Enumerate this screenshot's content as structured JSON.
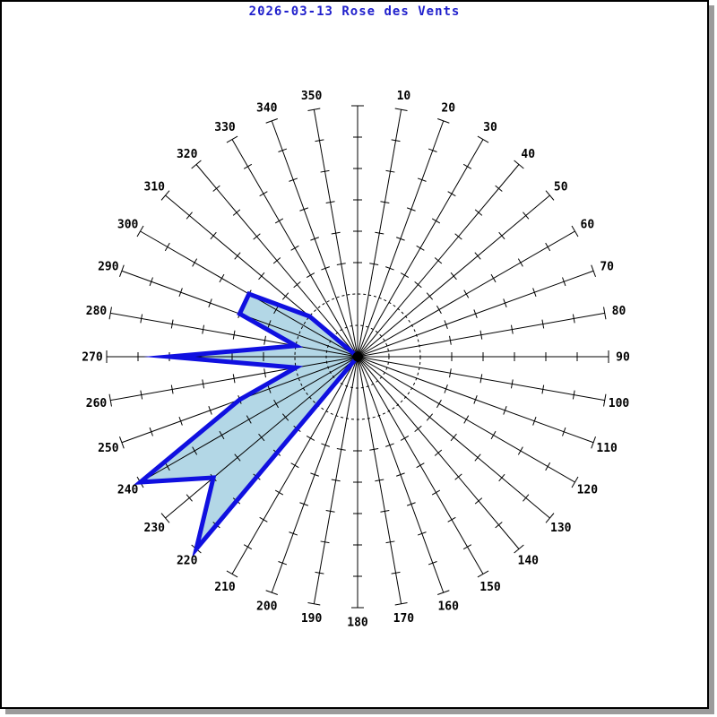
{
  "header": {
    "title": "2026-03-13 Rose des Vents"
  },
  "chart_data": {
    "type": "area",
    "subtype": "polar-wind-rose",
    "title": "2026-03-13 Rose des Vents",
    "legend": "none",
    "angular_axis": {
      "unit": "degrees-compass",
      "start_deg": 10,
      "step_deg": 10,
      "end_deg": 360,
      "tick_labels": [
        "10",
        "20",
        "30",
        "40",
        "50",
        "60",
        "70",
        "80",
        "90",
        "100",
        "110",
        "120",
        "130",
        "140",
        "150",
        "160",
        "170",
        "180",
        "190",
        "200",
        "210",
        "220",
        "230",
        "240",
        "250",
        "260",
        "270",
        "280",
        "290",
        "300",
        "310",
        "320",
        "330",
        "340",
        "350",
        ""
      ]
    },
    "radial_axis": {
      "scale_labels_shown": false,
      "dashed_circle_units": [
        1,
        2
      ],
      "spoke_tick_units": [
        3,
        4,
        5,
        6,
        7
      ],
      "axis_end_unit": 8
    },
    "series": [
      {
        "name": "wind-direction-frequency",
        "directions_deg": [
          10,
          20,
          30,
          40,
          50,
          60,
          70,
          80,
          90,
          100,
          110,
          120,
          130,
          140,
          150,
          160,
          170,
          180,
          190,
          200,
          210,
          220,
          230,
          240,
          250,
          260,
          270,
          280,
          290,
          300,
          310,
          320,
          330,
          340,
          350,
          360
        ],
        "values_grid_units": [
          0,
          0,
          0,
          0,
          0,
          0,
          0,
          0,
          0,
          0,
          0,
          0,
          0,
          0,
          0,
          0,
          0,
          0,
          0,
          0,
          0,
          8,
          6,
          8,
          4,
          2,
          6,
          2,
          4,
          4,
          2,
          0,
          0,
          0,
          0,
          0
        ]
      }
    ],
    "colors": {
      "title": "#2020cc",
      "grid": "#000000",
      "labels": "#000000",
      "polygon_fill": "#b3d7e6",
      "polygon_stroke": "#1010e0",
      "background": "#ffffff",
      "frame_border": "#000000",
      "frame_shadow": "#9b9b9b"
    }
  }
}
